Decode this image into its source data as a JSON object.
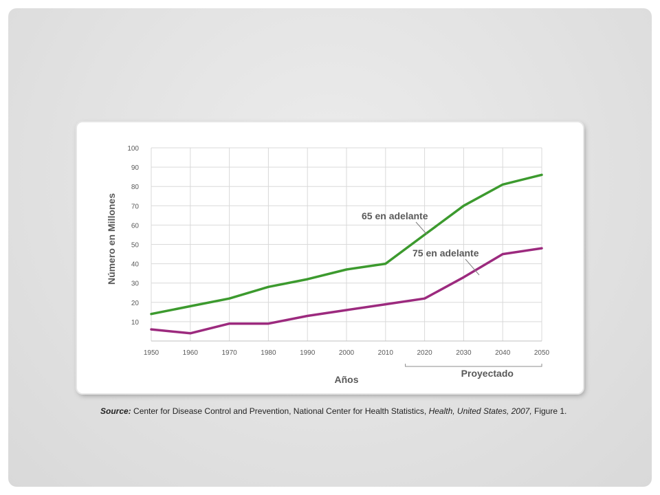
{
  "chart_data": {
    "type": "line",
    "title": "",
    "xlabel": "Años",
    "ylabel": "Número en Millones",
    "x": [
      1950,
      1960,
      1970,
      1980,
      1990,
      2000,
      2010,
      2020,
      2030,
      2040,
      2050
    ],
    "x_tick_labels": [
      "1950",
      "1960",
      "1970",
      "1980",
      "1990",
      "2000",
      "2010",
      "2020",
      "2030",
      "2040",
      "2050"
    ],
    "y_tick_labels": [
      "100",
      "90",
      "80",
      "70",
      "60",
      "50",
      "40",
      "30",
      "20",
      "10"
    ],
    "ylim": [
      0,
      100
    ],
    "xlim": [
      1950,
      2050
    ],
    "grid": true,
    "series": [
      {
        "name": "65 en adelante",
        "color": "#3c9a2e",
        "values": [
          14,
          18,
          22,
          28,
          32,
          37,
          40,
          55,
          70,
          81,
          86
        ]
      },
      {
        "name": "75 en adelante",
        "color": "#9c2a7e",
        "values": [
          6,
          4,
          9,
          9,
          13,
          16,
          19,
          22,
          33,
          45,
          48
        ]
      }
    ],
    "annotations": {
      "projected_label": "Proyectado",
      "projected_range": [
        2020,
        2050
      ]
    }
  },
  "source": {
    "label": "Source:",
    "text1": " Center  for Disease Control and Prevention, National Center for Health Statistics, ",
    "italic": "Health, United States, 2007,",
    "text2": " Figure 1."
  }
}
